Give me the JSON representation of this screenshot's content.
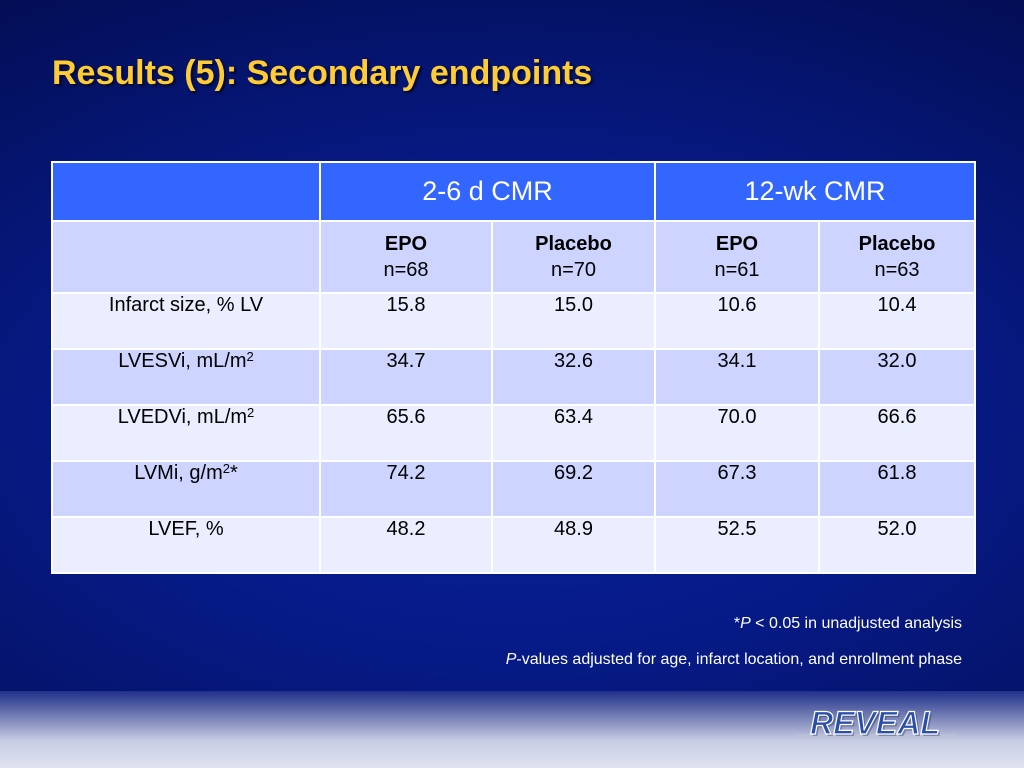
{
  "title": "Results (5): Secondary endpoints",
  "table": {
    "groups": [
      "2-6 d CMR",
      "12-wk CMR"
    ],
    "arms": [
      {
        "name": "EPO",
        "n": "n=68"
      },
      {
        "name": "Placebo",
        "n": "n=70"
      },
      {
        "name": "EPO",
        "n": "n=61"
      },
      {
        "name": "Placebo",
        "n": "n=63"
      }
    ],
    "rows": [
      {
        "label": "Infarct size, % LV",
        "values": [
          "15.8",
          "15.0",
          "10.6",
          "10.4"
        ]
      },
      {
        "label_pre": "LVESVi, mL/m",
        "label_sup": "2",
        "label_post": "",
        "values": [
          "34.7",
          "32.6",
          "34.1",
          "32.0"
        ]
      },
      {
        "label_pre": "LVEDVi, mL/m",
        "label_sup": "2",
        "label_post": "",
        "values": [
          "65.6",
          "63.4",
          "70.0",
          "66.6"
        ]
      },
      {
        "label_pre": "LVMi, g/m",
        "label_sup": "2",
        "label_post": "*",
        "values": [
          "74.2",
          "69.2",
          "67.3",
          "61.8"
        ]
      },
      {
        "label": "LVEF, %",
        "values": [
          "48.2",
          "48.9",
          "52.5",
          "52.0"
        ]
      }
    ]
  },
  "footnotes": {
    "f1_star": "*",
    "f1_p": "P",
    "f1_rest": " < 0.05 in unadjusted analysis",
    "f2_p": "P",
    "f2_rest": "-values adjusted for age, infarct location, and enrollment phase"
  },
  "logo": {
    "text": "REVEAL",
    "color": "#2a4fa8"
  }
}
